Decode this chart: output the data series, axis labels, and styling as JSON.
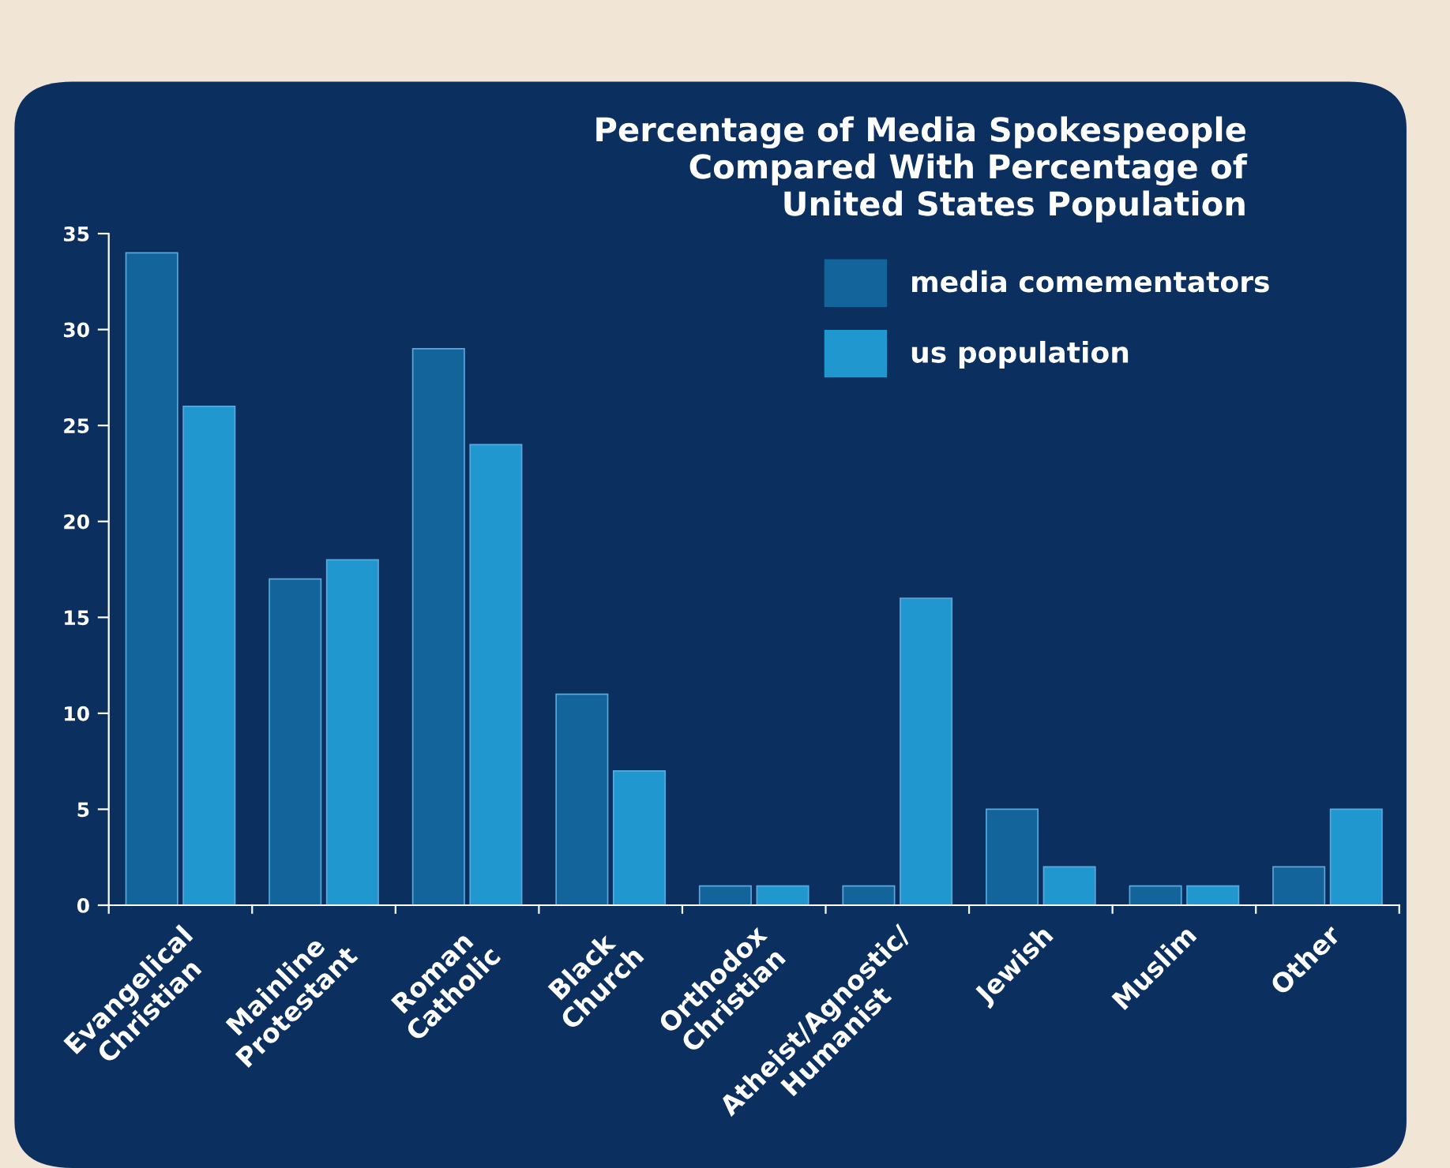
{
  "chart_data": {
    "type": "bar",
    "title": "Percentage of Media Spokespeople\nCompared With Percentage of\nUnited States Population",
    "categories": [
      "Evangelical\nChristian",
      "Mainline\nProtestant",
      "Roman\nCatholic",
      "Black\nChurch",
      "Orthodox\nChristian",
      "Atheist/Agnostic/\nHumanist",
      "Jewish",
      "Muslim",
      "Other"
    ],
    "series": [
      {
        "name": "media comementators",
        "color": "#14649c",
        "values": [
          34,
          17,
          29,
          11,
          1,
          1,
          5,
          1,
          2
        ]
      },
      {
        "name": "us population",
        "color": "#2197cf",
        "values": [
          26,
          18,
          24,
          7,
          1,
          16,
          2,
          1,
          5
        ]
      }
    ],
    "ylim": [
      0,
      35
    ],
    "yticks": [
      0,
      5,
      10,
      15,
      20,
      25,
      30,
      35
    ],
    "grid": false,
    "legend": "top right"
  }
}
